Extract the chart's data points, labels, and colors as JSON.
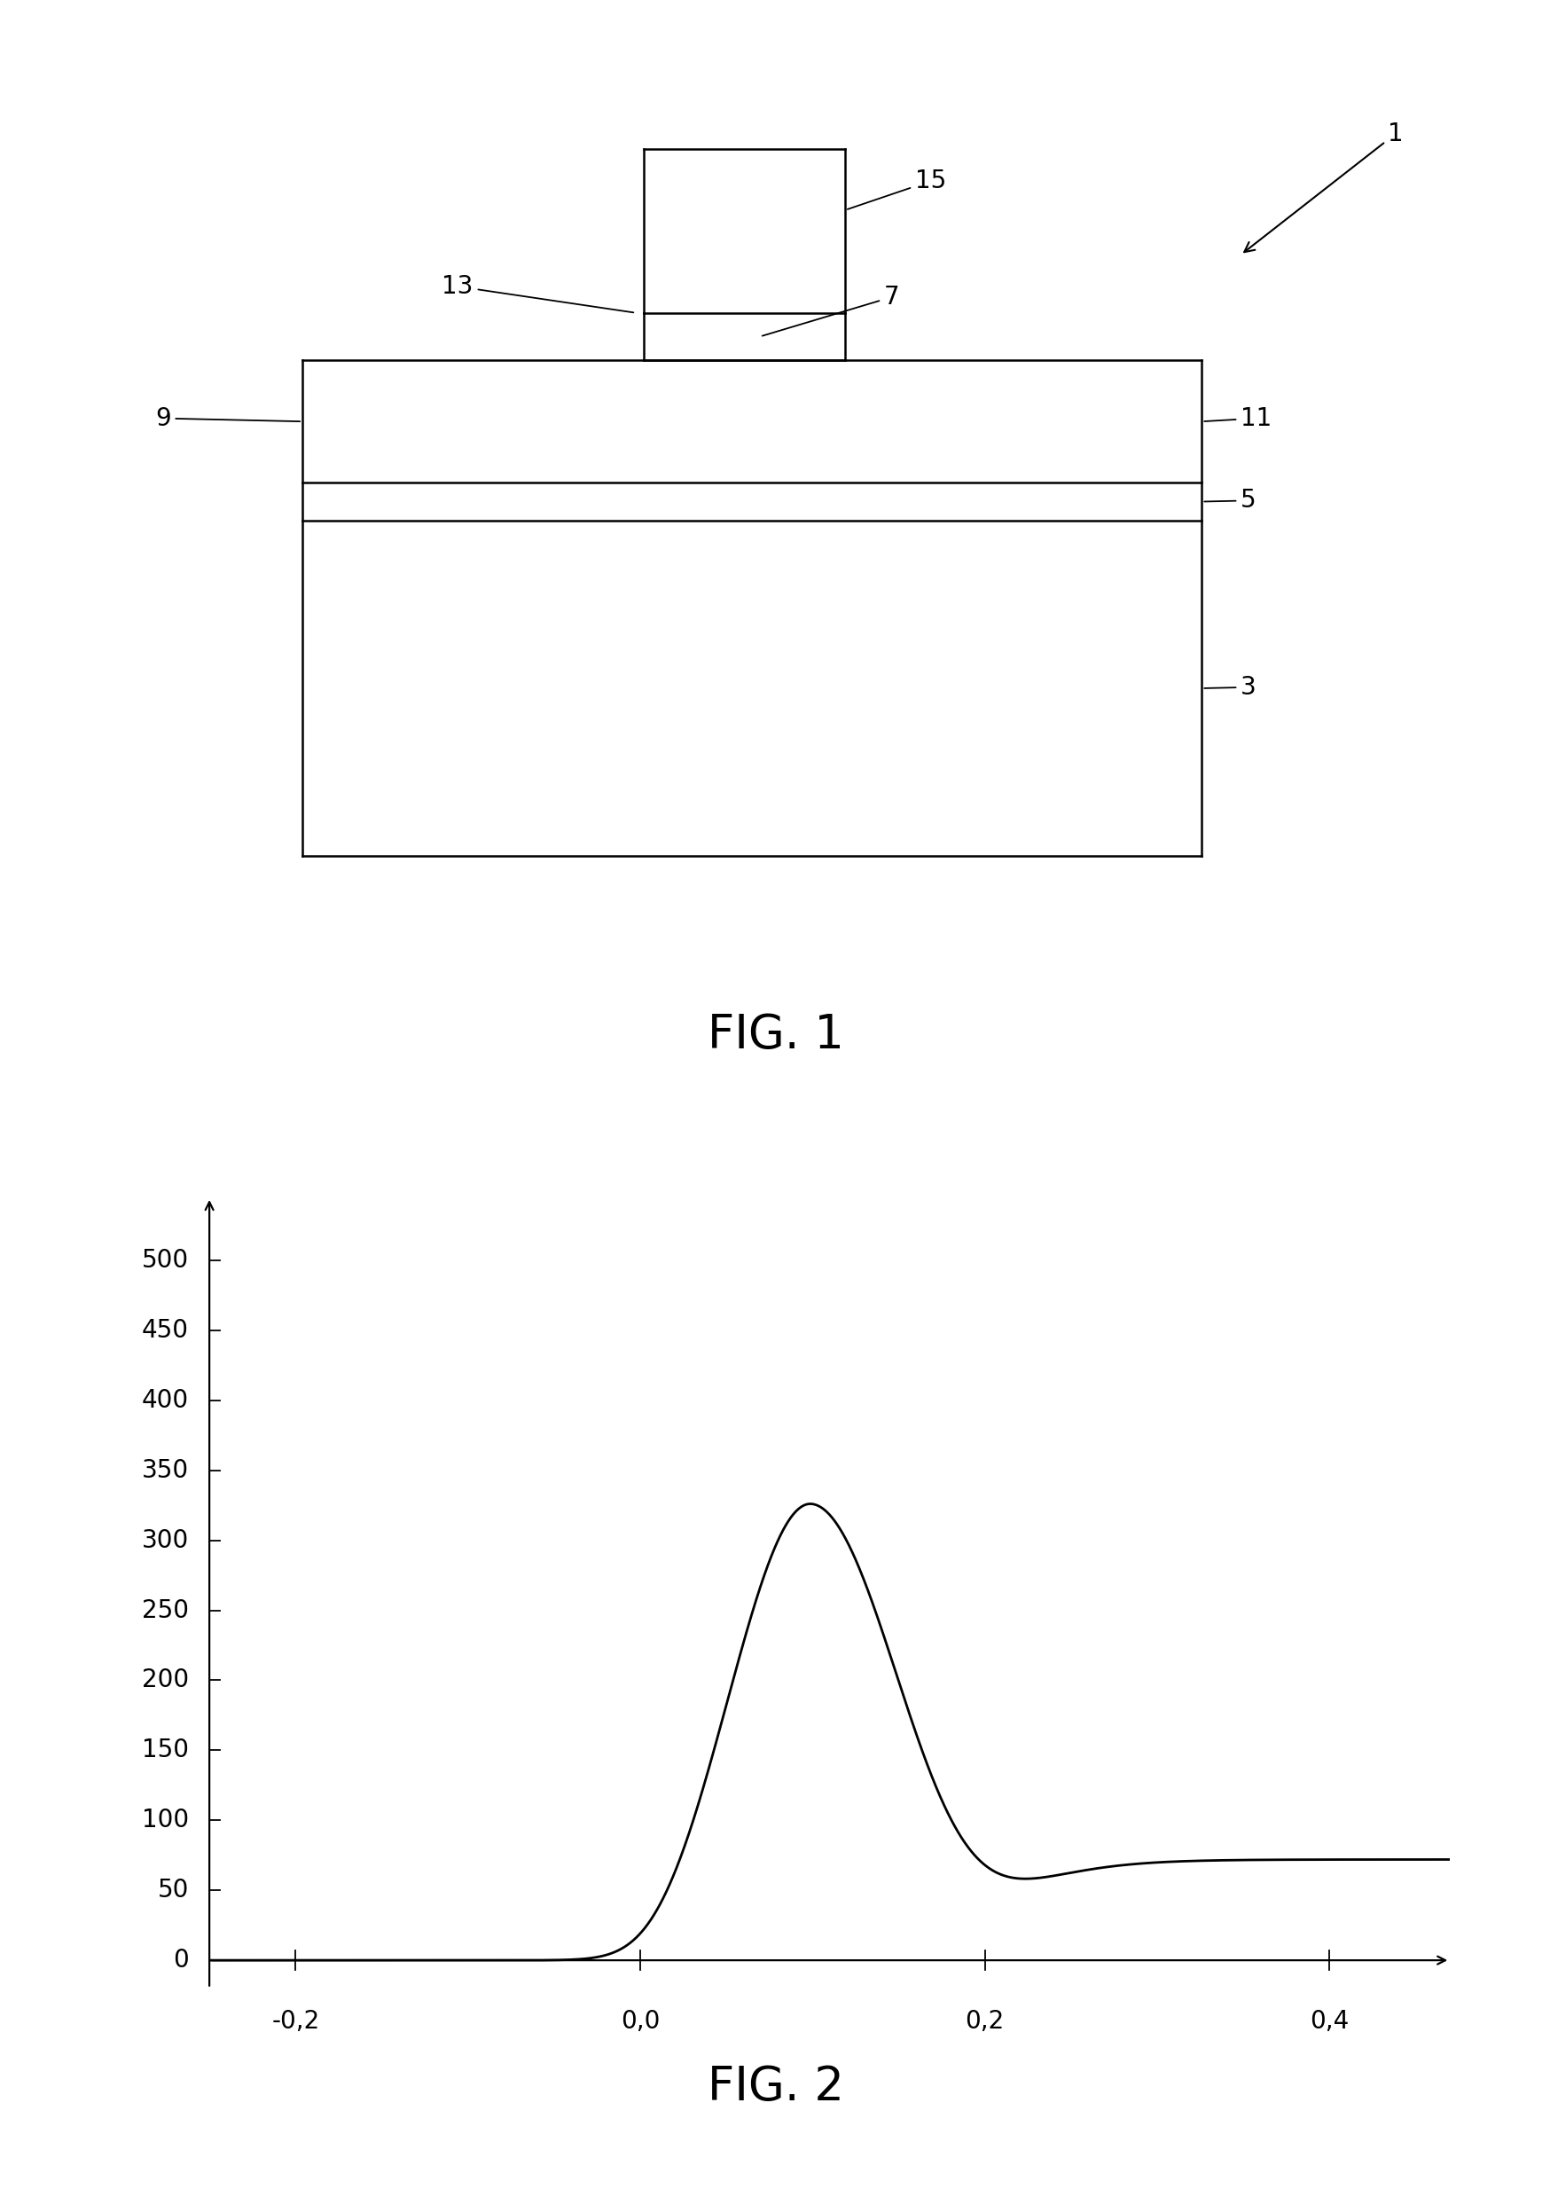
{
  "fig_width": 17.49,
  "fig_height": 24.77,
  "background_color": "#ffffff",
  "fig1_caption": "FIG. 1",
  "fig2_caption": "FIG. 2",
  "plot2_yticks": [
    0,
    50,
    100,
    150,
    200,
    250,
    300,
    350,
    400,
    450,
    500
  ],
  "plot2_xticks": [
    -0.2,
    0.0,
    0.2,
    0.4
  ],
  "plot2_xlim": [
    -0.25,
    0.47
  ],
  "plot2_ylim": [
    -20,
    545
  ],
  "plot2_xticklabels": [
    "-0,2",
    "0,0",
    "0,2",
    "0,4"
  ],
  "line_color": "#000000",
  "line_width": 2.0,
  "lw_diagram": 1.8,
  "fontsize_label": 20,
  "fontsize_caption": 38,
  "fontsize_tick": 20
}
